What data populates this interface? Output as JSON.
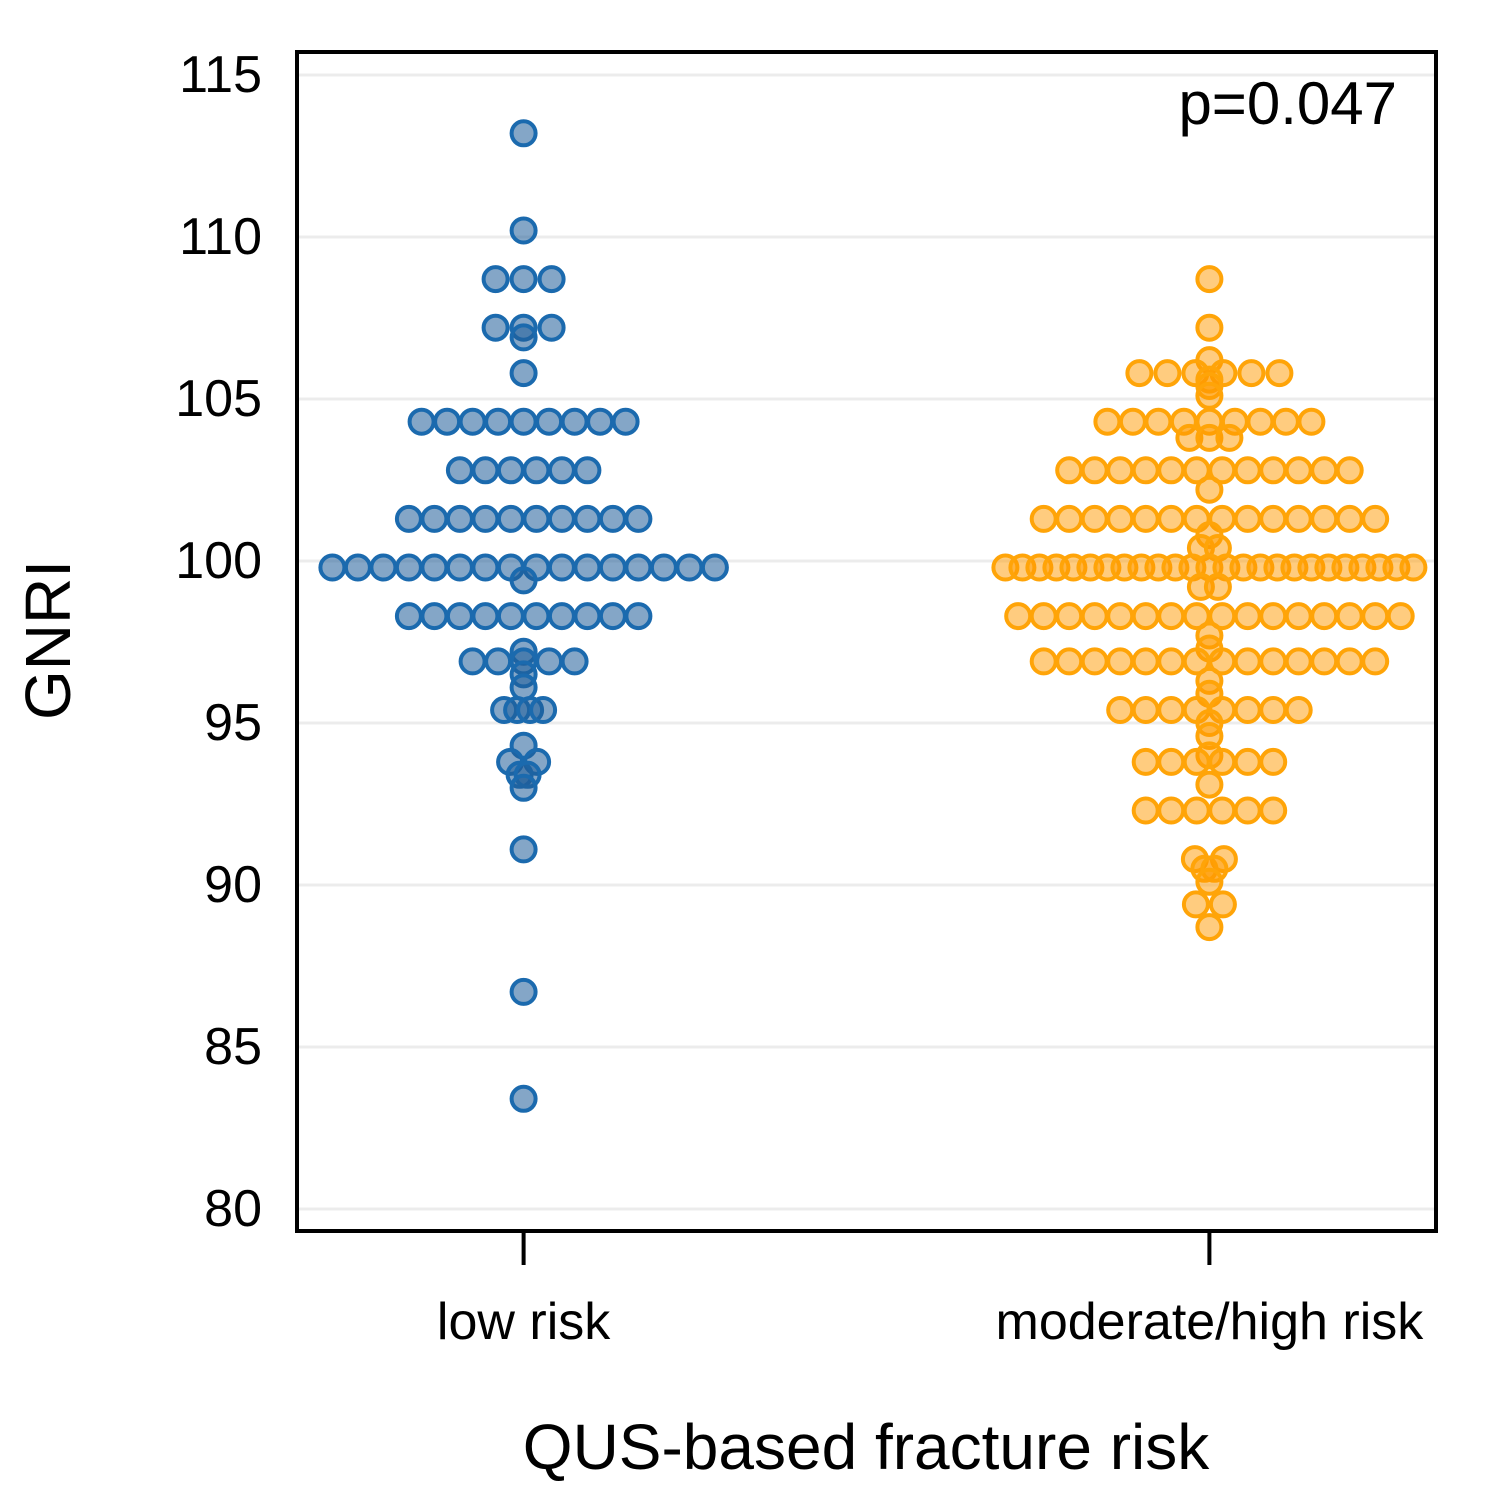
{
  "chart_data": {
    "type": "scatter",
    "subtype": "beeswarm-dotplot",
    "title": "",
    "ylabel": "GNRI",
    "xlabel": "QUS-based fracture risk",
    "annotation": "p=0.047",
    "legend": "none",
    "grid": "horizontal-only",
    "y_axis": {
      "min": 79,
      "max": 115,
      "ticks": [
        115,
        110,
        105,
        100,
        95,
        90,
        85,
        80
      ]
    },
    "x_axis": {
      "categories": [
        "low risk",
        "moderate/high risk"
      ]
    },
    "style": {
      "grid_color": "#ECECEC",
      "border_color": "#000000",
      "tick_color": "#000000",
      "background": "#FFFFFF",
      "dot_radius": 12,
      "dot_stroke_width": 4,
      "row_spacing_px": 25.5
    },
    "groups": [
      {
        "label": "low risk",
        "x_frac": 0.2,
        "fill": "rgba(31,92,153,0.55)",
        "stroke": "#1B6AAE",
        "rows": [
          {
            "v": 113.2,
            "n": 1
          },
          {
            "v": 110.2,
            "n": 1
          },
          {
            "v": 108.7,
            "n": 3,
            "sp": 28
          },
          {
            "v": 107.2,
            "n": 3,
            "sp": 28
          },
          {
            "v": 106.9,
            "n": 1
          },
          {
            "v": 105.8,
            "n": 1
          },
          {
            "v": 104.3,
            "n": 9
          },
          {
            "v": 102.8,
            "n": 6
          },
          {
            "v": 101.3,
            "n": 10
          },
          {
            "v": 99.8,
            "n": 16
          },
          {
            "v": 99.4,
            "n": 1
          },
          {
            "v": 98.3,
            "n": 10
          },
          {
            "v": 97.2,
            "n": 1
          },
          {
            "v": 96.9,
            "n": 5
          },
          {
            "v": 96.5,
            "n": 1
          },
          {
            "v": 96.1,
            "n": 1
          },
          {
            "v": 95.4,
            "n": 4,
            "sp": 13
          },
          {
            "v": 94.3,
            "n": 1
          },
          {
            "v": 93.8,
            "n": 2,
            "sp": 27
          },
          {
            "v": 93.4,
            "n": 2,
            "sp": 8
          },
          {
            "v": 93.0,
            "n": 1
          },
          {
            "v": 91.1,
            "n": 1
          },
          {
            "v": 86.7,
            "n": 1
          },
          {
            "v": 83.4,
            "n": 1
          }
        ]
      },
      {
        "label": "moderate/high risk",
        "x_frac": 0.8,
        "fill": "rgba(255,153,0,0.5)",
        "stroke": "#FFA408",
        "rows": [
          {
            "v": 108.7,
            "n": 1
          },
          {
            "v": 107.2,
            "n": 1
          },
          {
            "v": 106.2,
            "n": 1
          },
          {
            "v": 105.8,
            "n": 6,
            "sp": 28
          },
          {
            "v": 105.6,
            "n": 1
          },
          {
            "v": 105.4,
            "n": 1
          },
          {
            "v": 105.1,
            "n": 1
          },
          {
            "v": 104.3,
            "n": 9
          },
          {
            "v": 103.8,
            "n": 3,
            "sp": 20
          },
          {
            "v": 102.8,
            "n": 12
          },
          {
            "v": 102.2,
            "n": 1
          },
          {
            "v": 101.3,
            "n": 14
          },
          {
            "v": 100.8,
            "n": 1
          },
          {
            "v": 100.4,
            "n": 2,
            "sp": 17
          },
          {
            "v": 99.8,
            "n": 25,
            "sp": 17
          },
          {
            "v": 99.2,
            "n": 2,
            "sp": 17
          },
          {
            "v": 98.3,
            "n": 16
          },
          {
            "v": 97.7,
            "n": 1
          },
          {
            "v": 97.3,
            "n": 1
          },
          {
            "v": 96.9,
            "n": 14
          },
          {
            "v": 96.3,
            "n": 1
          },
          {
            "v": 95.9,
            "n": 1
          },
          {
            "v": 95.4,
            "n": 8
          },
          {
            "v": 95.0,
            "n": 1
          },
          {
            "v": 94.6,
            "n": 1
          },
          {
            "v": 94.0,
            "n": 1
          },
          {
            "v": 93.8,
            "n": 6
          },
          {
            "v": 93.1,
            "n": 1
          },
          {
            "v": 92.3,
            "n": 6
          },
          {
            "v": 90.8,
            "n": 2,
            "sp": 29
          },
          {
            "v": 90.5,
            "n": 2,
            "sp": 10
          },
          {
            "v": 90.1,
            "n": 1
          },
          {
            "v": 89.4,
            "n": 2,
            "sp": 27
          },
          {
            "v": 88.7,
            "n": 1
          }
        ]
      }
    ]
  }
}
